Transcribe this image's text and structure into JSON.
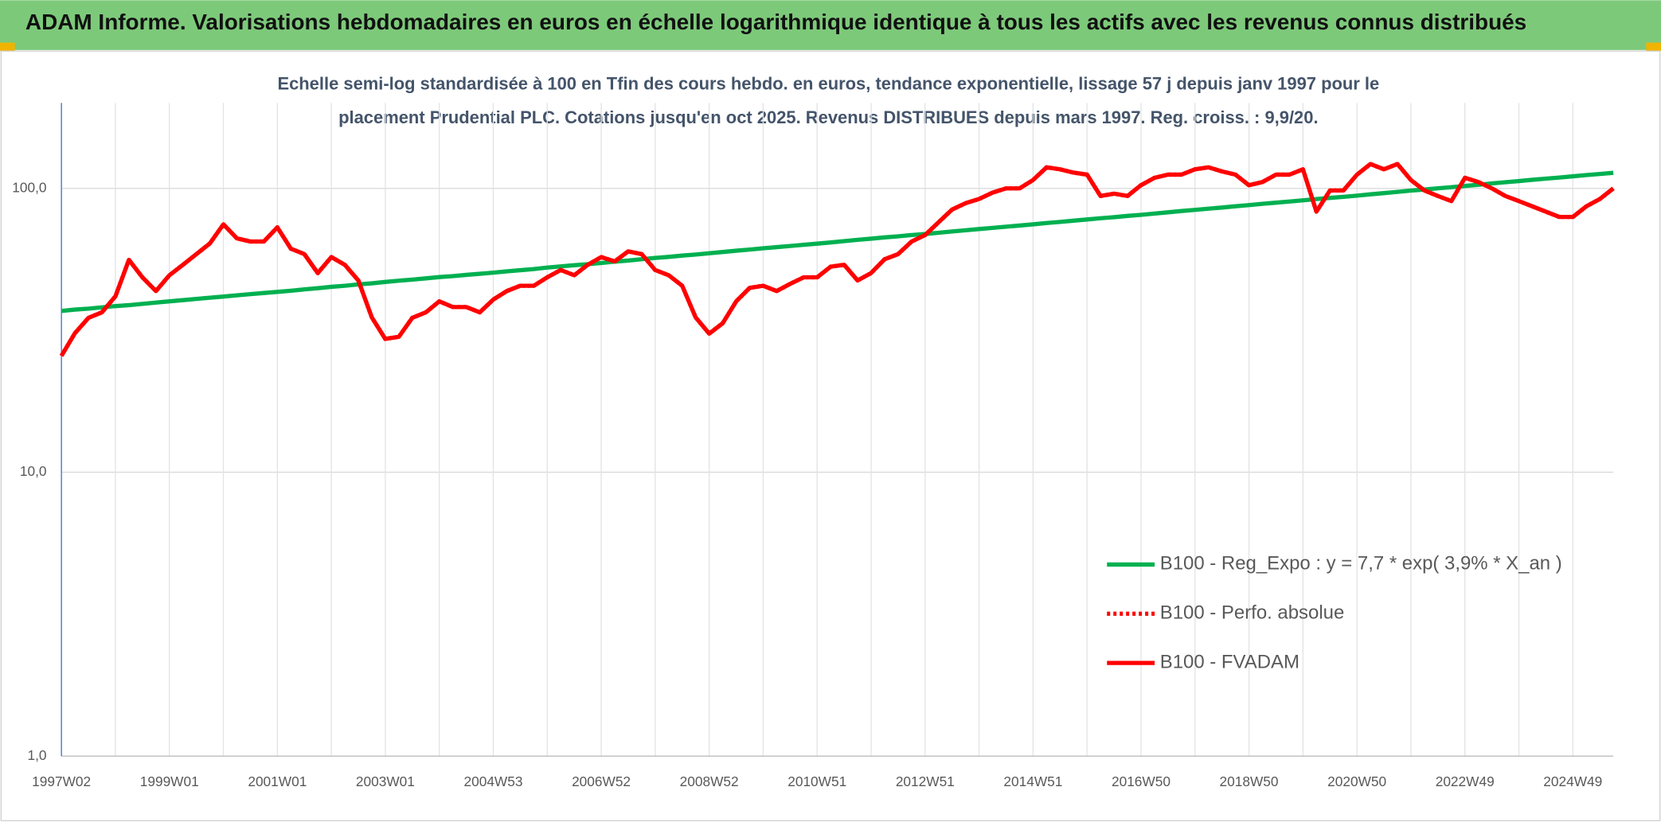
{
  "chart_data": {
    "type": "line",
    "title": "ADAM Informe. Valorisations hebdomadaires en euros en échelle logarithmique identique à tous les actifs avec les revenus connus distribués",
    "subtitle": [
      "Echelle semi-log standardisée à 100 en Tfin des cours hebdo. en euros, tendance exponentielle, lissage 57 j depuis janv 1997 pour le",
      "placement Prudential PLC. Cotations jusqu'en oct 2025. Revenus DISTRIBUES depuis mars 1997. Reg. croiss. : 9,9/20."
    ],
    "log_scale": true,
    "grid": true,
    "legend": "lower right",
    "ylim": [
      1,
      200
    ],
    "yticks": [
      {
        "value": 1,
        "label": "1,0"
      },
      {
        "value": 10,
        "label": "10,0"
      },
      {
        "value": 100,
        "label": "100,0"
      }
    ],
    "categories": [
      "1997W02",
      null,
      null,
      null,
      null,
      null,
      null,
      null,
      "1999W01",
      null,
      null,
      null,
      null,
      null,
      null,
      null,
      "2001W01",
      null,
      null,
      null,
      null,
      null,
      null,
      null,
      "2003W01",
      null,
      null,
      null,
      null,
      null,
      null,
      null,
      "2004W53",
      null,
      null,
      null,
      null,
      null,
      null,
      null,
      "2006W52",
      null,
      null,
      null,
      null,
      null,
      null,
      null,
      "2008W52",
      null,
      null,
      null,
      null,
      null,
      null,
      null,
      "2010W51",
      null,
      null,
      null,
      null,
      null,
      null,
      null,
      "2012W51",
      null,
      null,
      null,
      null,
      null,
      null,
      null,
      "2014W51",
      null,
      null,
      null,
      null,
      null,
      null,
      null,
      "2016W50",
      null,
      null,
      null,
      null,
      null,
      null,
      null,
      "2018W50",
      null,
      null,
      null,
      null,
      null,
      null,
      null,
      "2020W50",
      null,
      null,
      null,
      null,
      null,
      null,
      null,
      "2022W49",
      null,
      null,
      null,
      null,
      null,
      null,
      null,
      "2024W49",
      null,
      null,
      null
    ],
    "series": [
      {
        "name": "B100 - Reg_Expo : y = 7,7 * exp( 3,9% *  X_an )",
        "color": "#00b050",
        "style": "solid",
        "values": [
          37.0,
          37.4,
          37.7,
          38.1,
          38.5,
          38.8,
          39.2,
          39.6,
          40.0,
          40.4,
          40.8,
          41.2,
          41.6,
          42.0,
          42.4,
          42.8,
          43.2,
          43.6,
          44.1,
          44.5,
          45.0,
          45.4,
          45.9,
          46.3,
          46.8,
          47.3,
          47.7,
          48.2,
          48.7,
          49.1,
          49.6,
          50.0,
          50.5,
          51.0,
          51.5,
          52.0,
          52.6,
          53.1,
          53.6,
          54.1,
          54.6,
          55.2,
          55.7,
          56.3,
          56.9,
          57.4,
          58.0,
          58.5,
          59.1,
          59.7,
          60.3,
          60.9,
          61.5,
          62.1,
          62.7,
          63.3,
          63.9,
          64.5,
          65.2,
          65.9,
          66.5,
          67.2,
          67.8,
          68.5,
          69.1,
          69.8,
          70.5,
          71.2,
          71.9,
          72.6,
          73.3,
          74.0,
          74.7,
          75.5,
          76.2,
          77.0,
          77.7,
          78.5,
          79.2,
          80.0,
          80.7,
          81.5,
          82.4,
          83.2,
          84.0,
          84.8,
          85.6,
          86.5,
          87.3,
          88.2,
          89.1,
          89.9,
          90.8,
          91.7,
          92.6,
          93.4,
          94.3,
          95.3,
          96.2,
          97.2,
          98.2,
          99.1,
          100.1,
          101.0,
          102.0,
          103.0,
          104.1,
          105.1,
          106.1,
          107.2,
          108.2,
          109.2,
          110.3,
          111.4,
          112.4,
          113.5
        ]
      },
      {
        "name": "B100 - Perfo. absolue",
        "color": "#ff0000",
        "style": "dotted",
        "values": [
          25.7,
          30.9,
          35,
          36.6,
          41.7,
          56,
          48.6,
          43.5,
          49.4,
          53.8,
          58.7,
          64,
          74.7,
          66.7,
          65,
          65,
          72.9,
          61.3,
          58.7,
          50.3,
          57.3,
          53.8,
          47.4,
          35.1,
          29.5,
          30,
          35,
          36.6,
          40,
          38.2,
          38.2,
          36.6,
          40.6,
          43.5,
          45.4,
          45.4,
          48.6,
          51.6,
          49.4,
          53.8,
          57.3,
          55.3,
          60,
          58.7,
          51.6,
          49.4,
          45.4,
          35.1,
          30.8,
          33.5,
          40,
          44.6,
          45.4,
          43.5,
          46.1,
          48.6,
          48.6,
          53,
          53.8,
          47.4,
          50.3,
          56.3,
          58.7,
          65,
          68.5,
          76,
          84.2,
          88.7,
          91.8,
          96.6,
          100,
          100,
          107,
          118.7,
          116.7,
          113.7,
          111.8,
          94,
          95.8,
          94,
          102.6,
          109,
          111.8,
          111.8,
          116.7,
          118.7,
          114.7,
          111.8,
          102.6,
          105.3,
          111.8,
          111.8,
          116.7,
          82.8,
          98.3,
          98.3,
          111.8,
          121.9,
          116.7,
          121.9,
          107,
          98.3,
          94,
          90.2,
          109,
          105.3,
          100,
          94,
          90.2,
          86.4,
          82.8,
          79.3,
          79.3,
          86.4,
          91.8,
          100
        ]
      },
      {
        "name": "B100 - FVADAM",
        "color": "#ff0000",
        "style": "solid",
        "values": [
          25.7,
          30.9,
          35,
          36.6,
          41.7,
          56,
          48.6,
          43.5,
          49.4,
          53.8,
          58.7,
          64,
          74.7,
          66.7,
          65,
          65,
          72.9,
          61.3,
          58.7,
          50.3,
          57.3,
          53.8,
          47.4,
          35.1,
          29.5,
          30,
          35,
          36.6,
          40,
          38.2,
          38.2,
          36.6,
          40.6,
          43.5,
          45.4,
          45.4,
          48.6,
          51.6,
          49.4,
          53.8,
          57.3,
          55.3,
          60,
          58.7,
          51.6,
          49.4,
          45.4,
          35.1,
          30.8,
          33.5,
          40,
          44.6,
          45.4,
          43.5,
          46.1,
          48.6,
          48.6,
          53,
          53.8,
          47.4,
          50.3,
          56.3,
          58.7,
          65,
          68.5,
          76,
          84.2,
          88.7,
          91.8,
          96.6,
          100,
          100,
          107,
          118.7,
          116.7,
          113.7,
          111.8,
          94,
          95.8,
          94,
          102.6,
          109,
          111.8,
          111.8,
          116.7,
          118.7,
          114.7,
          111.8,
          102.6,
          105.3,
          111.8,
          111.8,
          116.7,
          82.8,
          98.3,
          98.3,
          111.8,
          121.9,
          116.7,
          121.9,
          107,
          98.3,
          94,
          90.2,
          109,
          105.3,
          100,
          94,
          90.2,
          86.4,
          82.8,
          79.3,
          79.3,
          86.4,
          91.8,
          100
        ]
      }
    ]
  }
}
